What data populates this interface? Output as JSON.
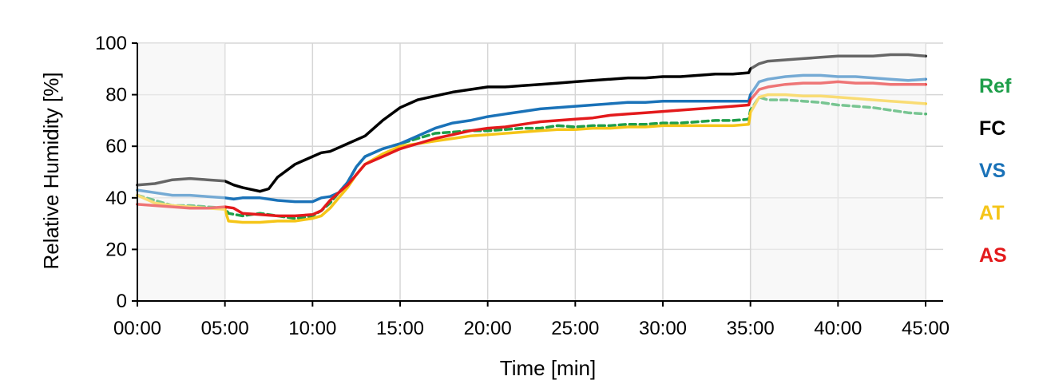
{
  "chart_data": {
    "type": "line",
    "xlabel": "Time [min]",
    "ylabel": "Relative Humidity [%]",
    "xlim": [
      0,
      45
    ],
    "ylim": [
      0,
      100
    ],
    "x_ticks": [
      0,
      5,
      10,
      15,
      20,
      25,
      30,
      35,
      40,
      45
    ],
    "x_tick_labels": [
      "00:00",
      "05:00",
      "10:00",
      "15:00",
      "20:00",
      "25:00",
      "30:00",
      "35:00",
      "40:00",
      "45:00"
    ],
    "y_ticks": [
      0,
      20,
      40,
      60,
      80,
      100
    ],
    "y_tick_labels": [
      "0",
      "20",
      "40",
      "60",
      "80",
      "100"
    ],
    "grid": true,
    "shaded_regions": [
      [
        0,
        5
      ],
      [
        35,
        45
      ]
    ],
    "legend_position": "right",
    "series": [
      {
        "name": "Ref",
        "color": "#1e9e4a",
        "dashed": true,
        "x": [
          0,
          1,
          2,
          3,
          4,
          5,
          5.2,
          6,
          7,
          8,
          9,
          10,
          10.5,
          11,
          11.5,
          12,
          12.5,
          13,
          14,
          15,
          16,
          17,
          18,
          19,
          20,
          21,
          22,
          23,
          24,
          25,
          26,
          27,
          28,
          29,
          30,
          31,
          32,
          33,
          34,
          34.9,
          35,
          35.5,
          36,
          37,
          38,
          39,
          40,
          41,
          42,
          43,
          44,
          45
        ],
        "y": [
          41,
          39,
          37,
          37,
          36.5,
          36,
          34,
          33,
          34,
          33,
          32,
          33,
          35,
          38,
          42,
          46,
          52,
          56,
          59,
          61,
          63,
          65,
          65.5,
          66,
          66,
          66.5,
          67,
          67,
          68,
          67.5,
          68,
          68,
          68.5,
          68.5,
          69,
          69,
          69.5,
          70,
          70,
          70.5,
          74,
          79,
          78,
          78,
          77.5,
          77,
          76,
          75.5,
          75,
          74,
          73,
          72.5
        ]
      },
      {
        "name": "FC",
        "color": "#000000",
        "dashed": false,
        "x": [
          0,
          1,
          2,
          3,
          4,
          5,
          5.5,
          6,
          7,
          7.5,
          8,
          9,
          10,
          10.5,
          11,
          12,
          13,
          14,
          15,
          16,
          17,
          18,
          19,
          20,
          21,
          22,
          23,
          24,
          25,
          26,
          27,
          28,
          29,
          30,
          31,
          32,
          33,
          34,
          34.9,
          35,
          35.5,
          36,
          37,
          38,
          39,
          40,
          41,
          42,
          43,
          44,
          45
        ],
        "y": [
          45,
          45.5,
          47,
          47.5,
          47,
          46.5,
          45,
          44,
          42.5,
          43.5,
          48,
          53,
          56,
          57.5,
          58,
          61,
          64,
          70,
          75,
          78,
          79.5,
          81,
          82,
          83,
          83,
          83.5,
          84,
          84.5,
          85,
          85.5,
          86,
          86.5,
          86.5,
          87,
          87,
          87.5,
          88,
          88,
          88.5,
          90,
          92,
          93,
          93.5,
          94,
          94.5,
          95,
          95,
          95,
          95.5,
          95.5,
          95
        ]
      },
      {
        "name": "VS",
        "color": "#1a72b8",
        "dashed": false,
        "x": [
          0,
          1,
          2,
          3,
          4,
          5,
          5.5,
          6,
          7,
          8,
          9,
          10,
          10.5,
          11,
          11.5,
          12,
          12.5,
          13,
          14,
          15,
          16,
          17,
          18,
          19,
          20,
          21,
          22,
          23,
          24,
          25,
          26,
          27,
          28,
          29,
          30,
          31,
          32,
          33,
          34,
          34.9,
          35,
          35.5,
          36,
          37,
          38,
          39,
          40,
          41,
          42,
          43,
          44,
          45
        ],
        "y": [
          43,
          42,
          41,
          41,
          40.5,
          40,
          39.5,
          40,
          40,
          39,
          38.5,
          38.5,
          40,
          40.5,
          42,
          46,
          52,
          56,
          59,
          61,
          64,
          67,
          69,
          70,
          71.5,
          72.5,
          73.5,
          74.5,
          75,
          75.5,
          76,
          76.5,
          77,
          77,
          77.5,
          77.5,
          77.5,
          77.5,
          77.5,
          77.5,
          80,
          85,
          86,
          87,
          87.5,
          87.5,
          87,
          87,
          86.5,
          86,
          85.5,
          86
        ]
      },
      {
        "name": "AT",
        "color": "#f5c518",
        "dashed": false,
        "x": [
          0,
          1,
          2,
          3,
          4,
          5,
          5.2,
          6,
          7,
          8,
          9,
          10,
          10.5,
          11,
          11.5,
          12,
          12.5,
          13,
          14,
          15,
          16,
          17,
          18,
          19,
          20,
          21,
          22,
          23,
          24,
          25,
          26,
          27,
          28,
          29,
          30,
          31,
          32,
          33,
          34,
          34.9,
          35,
          35.5,
          36,
          37,
          38,
          39,
          40,
          41,
          42,
          43,
          44,
          45
        ],
        "y": [
          41,
          38,
          37,
          36.5,
          36,
          35.5,
          31,
          30.5,
          30.5,
          31,
          31,
          32,
          33,
          36,
          40,
          44,
          49,
          53,
          57,
          60,
          61,
          62,
          63,
          64,
          64.5,
          65,
          65.5,
          66,
          66.5,
          66.5,
          67,
          67,
          67.5,
          67.5,
          68,
          68,
          68,
          68,
          68,
          68.5,
          73,
          79,
          80,
          80,
          79.5,
          79.5,
          79,
          78.5,
          78,
          77.5,
          77,
          76.5
        ]
      },
      {
        "name": "AS",
        "color": "#e31a1c",
        "dashed": false,
        "x": [
          0,
          1,
          2,
          3,
          4,
          5,
          5.5,
          6,
          7,
          8,
          9,
          10,
          10.5,
          11,
          11.5,
          12,
          12.5,
          13,
          14,
          15,
          16,
          17,
          18,
          19,
          20,
          21,
          22,
          23,
          24,
          25,
          26,
          27,
          28,
          29,
          30,
          31,
          32,
          33,
          34,
          34.9,
          35,
          35.5,
          36,
          37,
          38,
          39,
          40,
          41,
          42,
          43,
          44,
          45
        ],
        "y": [
          37.5,
          37,
          36.5,
          36,
          36,
          36.5,
          36,
          34,
          33.5,
          33,
          33,
          33.5,
          35,
          39,
          42,
          45,
          49,
          53,
          56,
          59,
          61,
          63,
          64.5,
          66,
          67,
          67.5,
          68.5,
          69.5,
          70,
          70.5,
          71,
          72,
          72.5,
          73,
          73.5,
          74,
          74.5,
          75,
          75.5,
          76,
          78,
          82,
          83,
          84,
          84.5,
          84.5,
          85,
          84.5,
          84.5,
          84,
          84,
          84
        ]
      }
    ]
  }
}
